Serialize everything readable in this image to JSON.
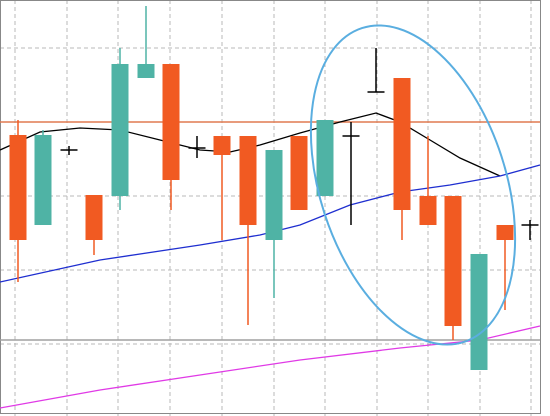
{
  "chart_data": {
    "type": "candlestick",
    "xlim": [
      0,
      540
    ],
    "ylim": [
      0,
      416
    ],
    "xticks": [
      15,
      67,
      118,
      170,
      222,
      274,
      325,
      377,
      428,
      480,
      531
    ],
    "yticks": [
      72,
      146,
      220,
      294,
      368
    ],
    "grid": true,
    "up_color": "#4fb3a5",
    "down_color": "#f15a22",
    "doji_color": "#000000",
    "x": [
      18,
      43,
      69,
      94,
      120,
      146,
      171,
      197,
      222,
      248,
      274,
      299,
      325,
      351,
      376,
      402,
      428,
      453,
      479,
      505,
      530
    ],
    "open": [
      281,
      191,
      266,
      221,
      220,
      338,
      352,
      268,
      280,
      280,
      176,
      280,
      220,
      280,
      324,
      338,
      220,
      220,
      46,
      191,
      191
    ],
    "high": [
      296,
      286,
      270,
      221,
      368,
      410,
      352,
      280,
      280,
      280,
      266,
      280,
      296,
      294,
      368,
      338,
      280,
      220,
      162,
      191,
      196
    ],
    "low": [
      134,
      191,
      261,
      161,
      206,
      338,
      206,
      258,
      176,
      91,
      118,
      206,
      220,
      191,
      324,
      176,
      191,
      76,
      46,
      106,
      176
    ],
    "close": [
      176,
      281,
      266,
      176,
      352,
      352,
      236,
      268,
      261,
      191,
      266,
      206,
      296,
      280,
      324,
      206,
      191,
      90,
      162,
      176,
      191
    ],
    "levels": [
      {
        "color": "#e07a50",
        "value": 294
      },
      {
        "color": "#a0a0a0",
        "value": 76
      }
    ],
    "series": [
      {
        "color": "#000000",
        "x": [
          0,
          40,
          80,
          120,
          160,
          200,
          230,
          260,
          300,
          340,
          376,
          400,
          430,
          460,
          500
        ],
        "values": [
          266,
          284,
          288,
          286,
          276,
          266,
          264,
          271,
          283,
          294,
          303,
          294,
          276,
          258,
          240
        ]
      },
      {
        "color": "#1f2fd0",
        "x": [
          0,
          100,
          200,
          260,
          300,
          350,
          400,
          450,
          500,
          540
        ],
        "values": [
          134,
          156,
          171,
          181,
          191,
          211,
          224,
          231,
          240,
          251
        ]
      },
      {
        "color": "#e03ae6",
        "x": [
          0,
          100,
          200,
          300,
          400,
          480,
          540
        ],
        "values": [
          8,
          26,
          41,
          56,
          68,
          76,
          90
        ]
      }
    ]
  }
}
